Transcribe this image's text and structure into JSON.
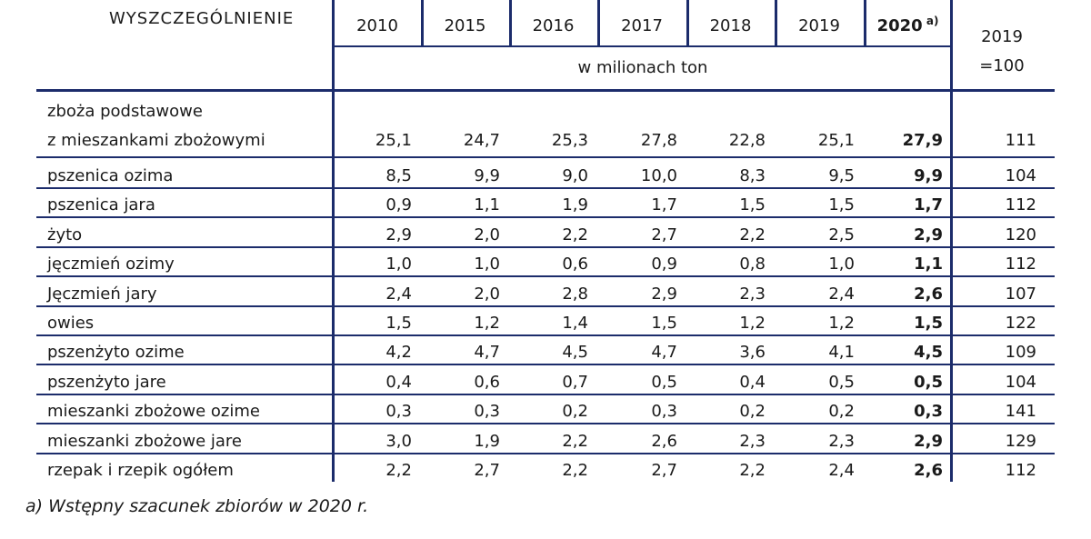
{
  "table": {
    "header_label": "WYSZCZEGÓLNIENIE",
    "years": [
      "2010",
      "2015",
      "2016",
      "2017",
      "2018",
      "2019",
      "2020"
    ],
    "last_year_note": "a)",
    "unit": "w milionach ton",
    "index_label_line1": "2019",
    "index_label_line2": "=100",
    "rows": [
      {
        "label": "zboża podstawowe",
        "label2": "z mieszankami zbożowymi",
        "values": [
          "25,1",
          "24,7",
          "25,3",
          "27,8",
          "22,8",
          "25,1",
          "27,9"
        ],
        "index": "111"
      },
      {
        "label": "pszenica ozima",
        "values": [
          "8,5",
          "9,9",
          "9,0",
          "10,0",
          "8,3",
          "9,5",
          "9,9"
        ],
        "index": "104"
      },
      {
        "label": "pszenica jara",
        "values": [
          "0,9",
          "1,1",
          "1,9",
          "1,7",
          "1,5",
          "1,5",
          "1,7"
        ],
        "index": "112"
      },
      {
        "label": "żyto",
        "values": [
          "2,9",
          "2,0",
          "2,2",
          "2,7",
          "2,2",
          "2,5",
          "2,9"
        ],
        "index": "120"
      },
      {
        "label": "jęczmień ozimy",
        "values": [
          "1,0",
          "1,0",
          "0,6",
          "0,9",
          "0,8",
          "1,0",
          "1,1"
        ],
        "index": "112"
      },
      {
        "label": "Jęczmień jary",
        "values": [
          "2,4",
          "2,0",
          "2,8",
          "2,9",
          "2,3",
          "2,4",
          "2,6"
        ],
        "index": "107"
      },
      {
        "label": "owies",
        "values": [
          "1,5",
          "1,2",
          "1,4",
          "1,5",
          "1,2",
          "1,2",
          "1,5"
        ],
        "index": "122"
      },
      {
        "label": "pszenżyto ozime",
        "values": [
          "4,2",
          "4,7",
          "4,5",
          "4,7",
          "3,6",
          "4,1",
          "4,5"
        ],
        "index": "109"
      },
      {
        "label": "pszenżyto jare",
        "values": [
          "0,4",
          "0,6",
          "0,7",
          "0,5",
          "0,4",
          "0,5",
          "0,5"
        ],
        "index": "104"
      },
      {
        "label": "mieszanki zbożowe ozime",
        "values": [
          "0,3",
          "0,3",
          "0,2",
          "0,3",
          "0,2",
          "0,2",
          "0,3"
        ],
        "index": "141"
      },
      {
        "label": "mieszanki zbożowe jare",
        "values": [
          "3,0",
          "1,9",
          "2,2",
          "2,6",
          "2,3",
          "2,3",
          "2,9"
        ],
        "index": "129"
      },
      {
        "label": "rzepak i rzepik ogółem",
        "values": [
          "2,2",
          "2,7",
          "2,2",
          "2,7",
          "2,2",
          "2,4",
          "2,6"
        ],
        "index": "112"
      }
    ],
    "footnote": "a) Wstępny szacunek zbiorów w 2020 r.",
    "border_color": "#1c2c6b"
  }
}
